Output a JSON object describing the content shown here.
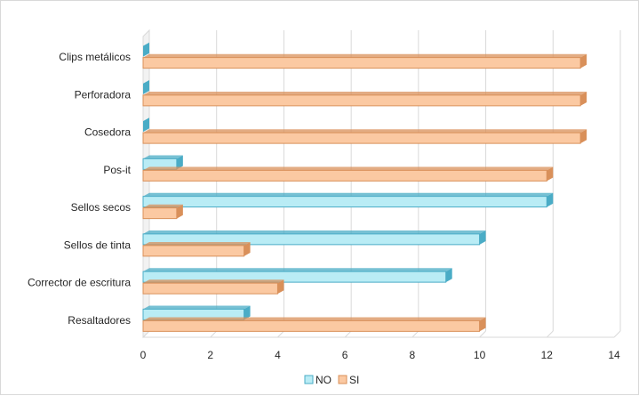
{
  "chart_data": {
    "type": "bar",
    "orientation": "horizontal",
    "style": "3d",
    "categories": [
      "Clips metálicos",
      "Perforadora",
      "Cosedora",
      "Pos-it",
      "Sellos secos",
      "Sellos de tinta",
      "Corrector de escritura",
      "Resaltadores"
    ],
    "series": [
      {
        "name": "NO",
        "color": "#b9ecf5",
        "edge": "#4aacc6",
        "values": [
          0,
          0,
          0,
          1,
          12,
          10,
          9,
          3
        ]
      },
      {
        "name": "SI",
        "color": "#fbc9a2",
        "edge": "#d9905a",
        "values": [
          13,
          13,
          13,
          12,
          1,
          3,
          4,
          10
        ]
      }
    ],
    "xlim": [
      0,
      14
    ],
    "xticks": [
      "0",
      "2",
      "4",
      "6",
      "8",
      "10",
      "12",
      "14"
    ],
    "grid": true,
    "legend_position": "bottom",
    "title": "",
    "xlabel": "",
    "ylabel": ""
  }
}
